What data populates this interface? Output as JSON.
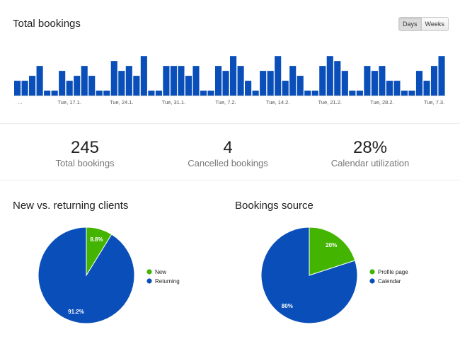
{
  "header": {
    "title": "Total bookings",
    "toggle": [
      {
        "label": "Days",
        "active": true
      },
      {
        "label": "Weeks",
        "active": false
      }
    ]
  },
  "stats": [
    {
      "value": "245",
      "label": "Total bookings"
    },
    {
      "value": "4",
      "label": "Cancelled bookings"
    },
    {
      "value": "28%",
      "label": "Calendar utilization"
    }
  ],
  "colors": {
    "blue": "#0a4fb9",
    "green": "#43b500"
  },
  "chart_data": [
    {
      "type": "bar",
      "title": "Total bookings",
      "categories": [
        "…",
        "",
        "",
        "",
        "",
        "",
        "",
        "Tue, 17.1.",
        "",
        "",
        "",
        "",
        "",
        "",
        "Tue, 24.1.",
        "",
        "",
        "",
        "",
        "",
        "",
        "Tue, 31.1.",
        "",
        "",
        "",
        "",
        "",
        "",
        "Tue, 7.2.",
        "",
        "",
        "",
        "",
        "",
        "",
        "Tue, 14.2.",
        "",
        "",
        "",
        "",
        "",
        "",
        "Tue, 21.2.",
        "",
        "",
        "",
        "",
        "",
        "",
        "Tue, 28.2.",
        "",
        "",
        "",
        "",
        "",
        "",
        "Tue, 7.3.",
        ""
      ],
      "values": [
        3,
        3,
        4,
        6,
        1,
        1,
        5,
        3,
        4,
        6,
        4,
        1,
        1,
        7,
        5,
        6,
        4,
        8,
        1,
        1,
        6,
        6,
        6,
        4,
        6,
        1,
        1,
        6,
        5,
        8,
        6,
        3,
        1,
        5,
        5,
        8,
        3,
        6,
        4,
        1,
        1,
        6,
        8,
        7,
        5,
        1,
        1,
        6,
        5,
        6,
        3,
        3,
        1,
        1,
        5,
        3,
        6,
        8
      ],
      "ylim": [
        0,
        8.6
      ]
    },
    {
      "type": "pie",
      "title": "New vs. returning clients",
      "labels": [
        "New",
        "Returning"
      ],
      "values": [
        8.8,
        91.2
      ],
      "value_labels": [
        "8.8%",
        "91.2%"
      ],
      "colors": [
        "#43b500",
        "#0a4fb9"
      ]
    },
    {
      "type": "pie",
      "title": "Bookings source",
      "labels": [
        "Profile page",
        "Calendar"
      ],
      "values": [
        20,
        80
      ],
      "value_labels": [
        "20%",
        "80%"
      ],
      "colors": [
        "#43b500",
        "#0a4fb9"
      ]
    }
  ]
}
